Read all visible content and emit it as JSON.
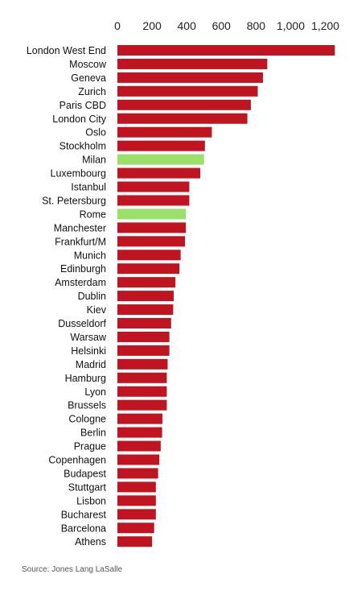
{
  "chart_data": {
    "type": "bar",
    "orientation": "horizontal",
    "categories": [
      "London West End",
      "Moscow",
      "Geneva",
      "Zurich",
      "Paris CBD",
      "London City",
      "Oslo",
      "Stockholm",
      "Milan",
      "Luxembourg",
      "Istanbul",
      "St. Petersburg",
      "Rome",
      "Manchester",
      "Frankfurt/M",
      "Munich",
      "Edinburgh",
      "Amsterdam",
      "Dublin",
      "Kiev",
      "Dusseldorf",
      "Warsaw",
      "Helsinki",
      "Madrid",
      "Hamburg",
      "Lyon",
      "Brussels",
      "Cologne",
      "Berlin",
      "Prague",
      "Copenhagen",
      "Budapest",
      "Stuttgart",
      "Lisbon",
      "Bucharest",
      "Barcelona",
      "Athens"
    ],
    "values": [
      1255,
      865,
      840,
      810,
      770,
      750,
      545,
      505,
      500,
      478,
      415,
      415,
      395,
      395,
      390,
      365,
      358,
      335,
      325,
      322,
      310,
      300,
      300,
      290,
      285,
      285,
      285,
      260,
      258,
      250,
      242,
      235,
      222,
      222,
      222,
      212,
      200
    ],
    "highlight_categories": [
      "Milan",
      "Rome"
    ],
    "colors": {
      "bar": "#c01520",
      "highlight": "#9be06a"
    },
    "xlim": [
      0,
      1250
    ],
    "xticks": [
      0,
      200,
      400,
      600,
      800,
      1000,
      1200
    ],
    "xtick_labels": [
      "0",
      "200",
      "400",
      "600",
      "800",
      "1,000",
      "1,200"
    ],
    "axis_position": "top",
    "grid": false,
    "title": "",
    "xlabel": "",
    "ylabel": ""
  },
  "source": "Source: Jones Lang LaSalle"
}
